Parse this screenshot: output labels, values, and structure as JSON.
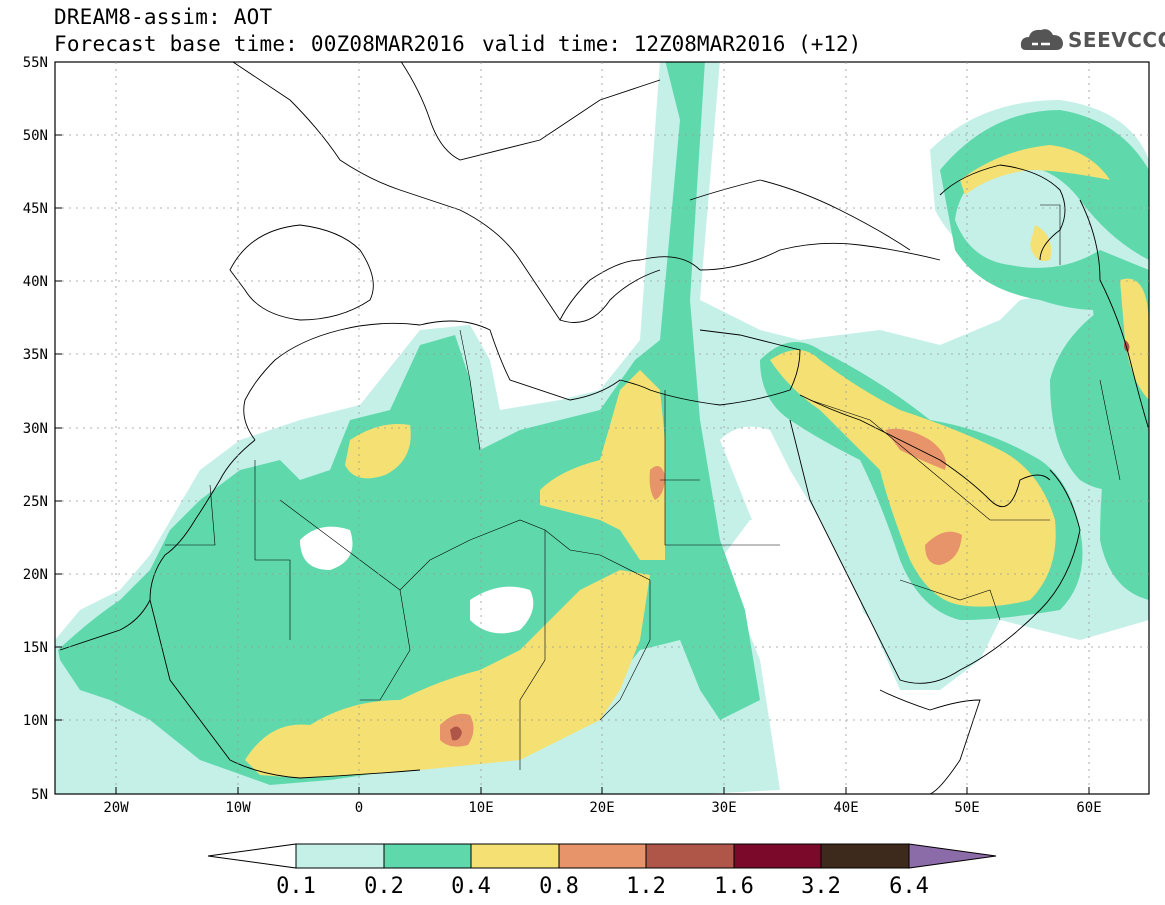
{
  "header": {
    "line1": "DREAM8-assim: AOT",
    "line2": "Forecast base time: 00Z08MAR2016",
    "valid": "valid time: 12Z08MAR2016 (+12)",
    "logo_text": "SEEVCCC"
  },
  "axes": {
    "lat_labels": [
      "55N",
      "50N",
      "45N",
      "40N",
      "35N",
      "30N",
      "25N",
      "20N",
      "15N",
      "10N",
      "5N"
    ],
    "lon_labels": [
      "20W",
      "10W",
      "0",
      "10E",
      "20E",
      "30E",
      "40E",
      "50E",
      "60E"
    ],
    "lat_range": [
      5,
      55
    ],
    "lon_range": [
      -25,
      65
    ]
  },
  "colorbar": {
    "levels": [
      "0.1",
      "0.2",
      "0.4",
      "0.8",
      "1.2",
      "1.6",
      "3.2",
      "6.4"
    ],
    "colors": [
      "#ffffff",
      "#c4f0e8",
      "#5fd9ac",
      "#f5e173",
      "#e8946a",
      "#b05648",
      "#7b0a2a",
      "#3e2a1c",
      "#8c6ca8"
    ]
  }
}
